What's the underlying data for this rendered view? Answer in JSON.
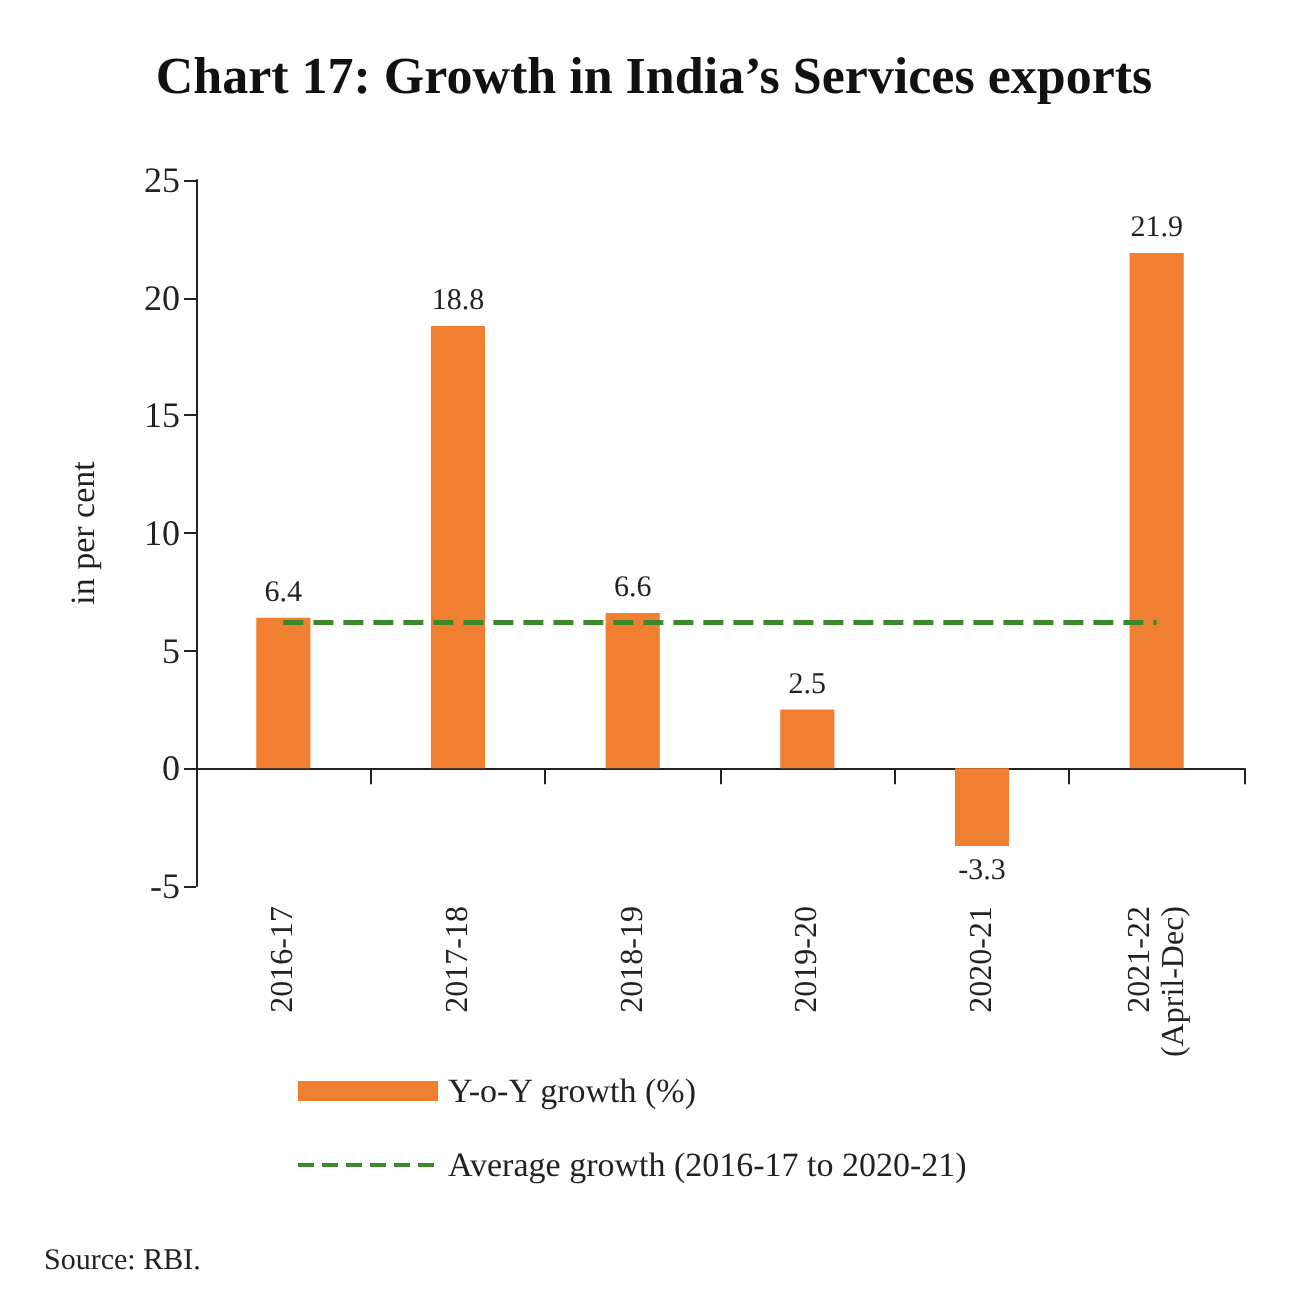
{
  "chart_data": {
    "type": "bar",
    "title": "Chart 17: Growth in India’s Services exports",
    "ylabel": "in per cent",
    "categories": [
      "2016-17",
      "2017-18",
      "2018-19",
      "2019-20",
      "2020-21",
      "2021-22\n(April-Dec)"
    ],
    "series": [
      {
        "name": "Y-o-Y growth (%)",
        "color": "#f07f32",
        "values": [
          6.4,
          18.8,
          6.6,
          2.5,
          -3.3,
          21.9
        ],
        "value_labels": [
          "6.4",
          "18.8",
          "6.6",
          "2.5",
          "-3.3",
          "21.9"
        ]
      },
      {
        "name": "Average growth (2016-17 to 2020-21)",
        "type": "line",
        "color": "#3a8a2c",
        "line_style": "dashed",
        "marker": "none",
        "values": [
          6.2,
          6.2,
          6.2,
          6.2,
          6.2,
          6.2
        ]
      }
    ],
    "ylim": [
      -5,
      25
    ],
    "yticks": [
      -5,
      0,
      5,
      10,
      15,
      20,
      25
    ],
    "legend": "bottom",
    "annotations": [
      "Source: RBI."
    ]
  }
}
